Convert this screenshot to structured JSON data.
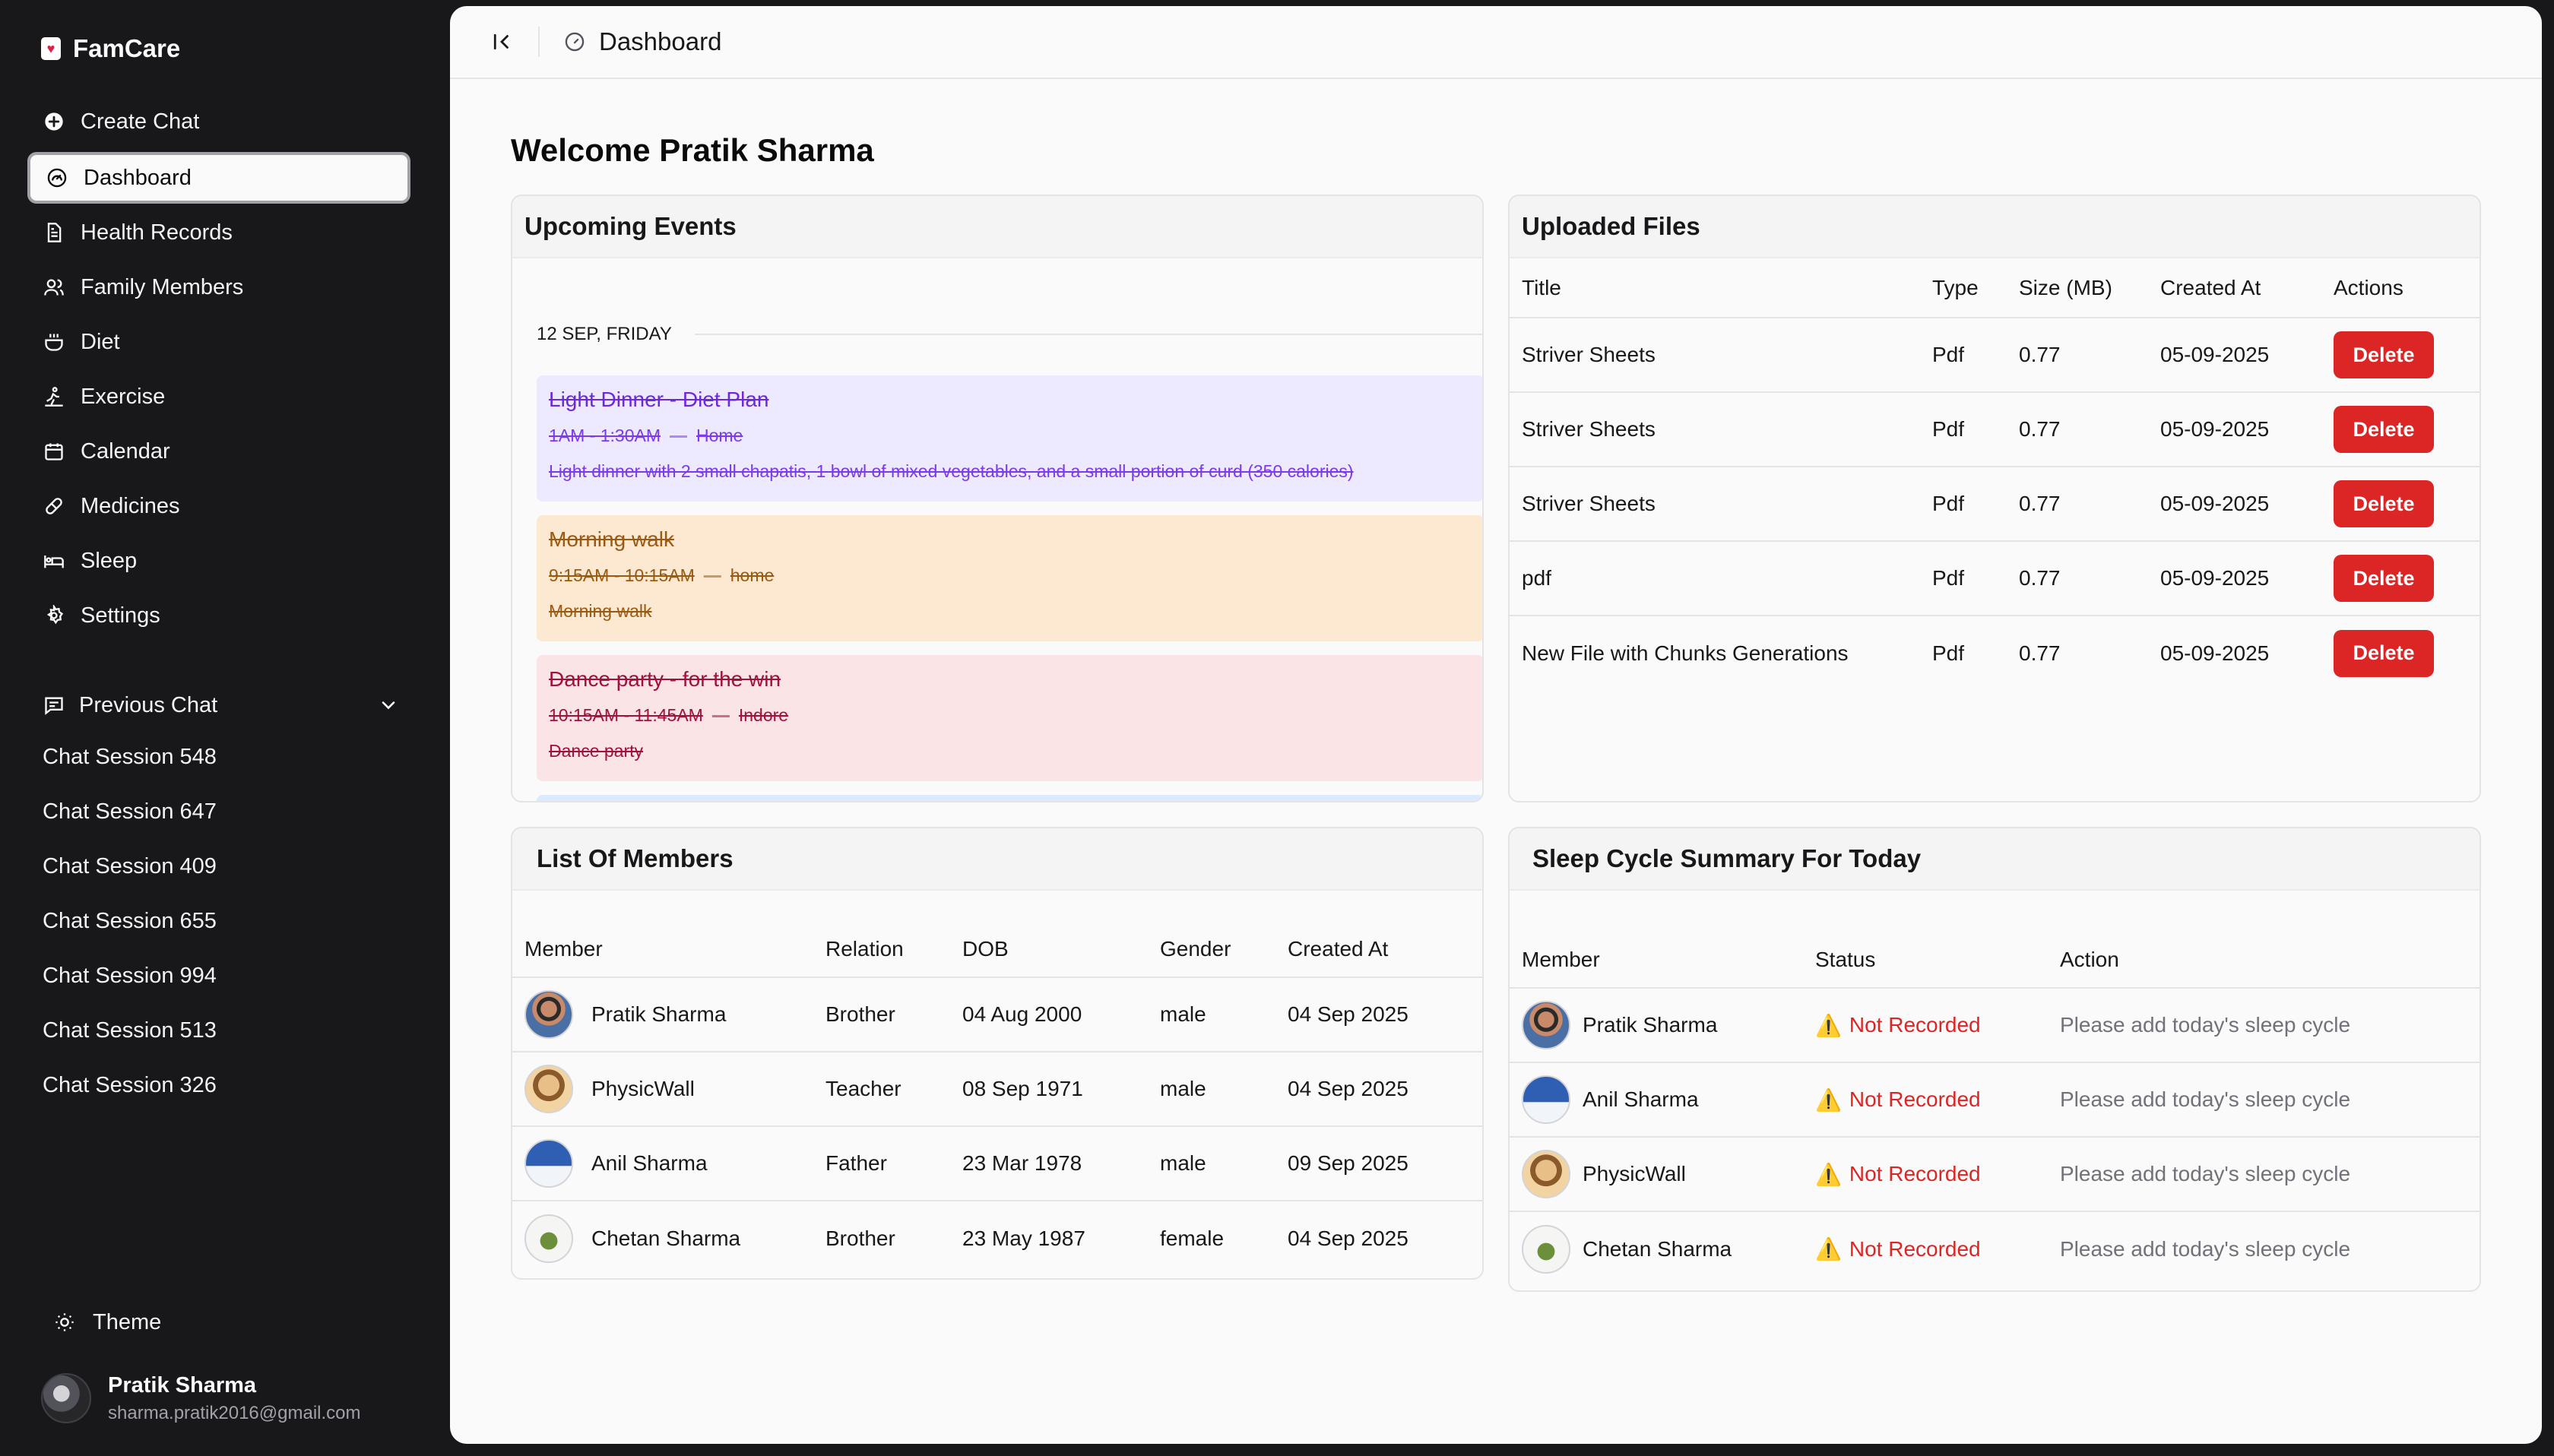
{
  "app": {
    "name": "FamCare",
    "logo_icon": "heart-icon"
  },
  "nav": {
    "items": [
      {
        "label": "Create Chat",
        "icon": "plus-circle-icon"
      },
      {
        "label": "Dashboard",
        "icon": "gauge-icon",
        "active": true
      },
      {
        "label": "Health Records",
        "icon": "file-icon"
      },
      {
        "label": "Family Members",
        "icon": "users-icon"
      },
      {
        "label": "Diet",
        "icon": "cooking-pot-icon"
      },
      {
        "label": "Exercise",
        "icon": "exercise-icon"
      },
      {
        "label": "Calendar",
        "icon": "calendar-icon"
      },
      {
        "label": "Medicines",
        "icon": "pill-icon"
      },
      {
        "label": "Sleep",
        "icon": "bed-icon"
      },
      {
        "label": "Settings",
        "icon": "gear-icon"
      }
    ]
  },
  "previous_chat": {
    "label": "Previous Chat",
    "sessions": [
      "Chat Session 548",
      "Chat Session 647",
      "Chat Session 409",
      "Chat Session 655",
      "Chat Session 994",
      "Chat Session 513",
      "Chat Session 326"
    ]
  },
  "theme_label": "Theme",
  "user": {
    "name": "Pratik Sharma",
    "email": "sharma.pratik2016@gmail.com"
  },
  "header": {
    "breadcrumb": "Dashboard"
  },
  "welcome": "Welcome Pratik Sharma",
  "events": {
    "title": "Upcoming Events",
    "date": "12 SEP, FRIDAY",
    "items": [
      {
        "title": "Light Dinner - Diet Plan",
        "time": "1AM - 1:30AM",
        "place": "Home",
        "desc": "Light dinner with 2 small chapatis, 1 bowl of mixed vegetables, and a small portion of curd (350 calories)"
      },
      {
        "title": "Morning walk",
        "time": "9:15AM - 10:15AM",
        "place": "home",
        "desc": "Morning walk"
      },
      {
        "title": "Dance party - for the win",
        "time": "10:15AM - 11:45AM",
        "place": "Indore",
        "desc": "Dance party"
      }
    ],
    "separator": "—"
  },
  "files": {
    "title": "Uploaded Files",
    "columns": [
      "Title",
      "Type",
      "Size (MB)",
      "Created At",
      "Actions"
    ],
    "rows": [
      [
        "Striver Sheets",
        "Pdf",
        "0.77",
        "05-09-2025"
      ],
      [
        "Striver Sheets",
        "Pdf",
        "0.77",
        "05-09-2025"
      ],
      [
        "Striver Sheets",
        "Pdf",
        "0.77",
        "05-09-2025"
      ],
      [
        "pdf",
        "Pdf",
        "0.77",
        "05-09-2025"
      ],
      [
        "New File with Chunks Generations",
        "Pdf",
        "0.77",
        "05-09-2025"
      ]
    ],
    "delete_label": "Delete"
  },
  "members": {
    "title": "List Of Members",
    "columns": [
      "Member",
      "Relation",
      "DOB",
      "Gender",
      "Created At"
    ],
    "rows": [
      [
        "Pratik Sharma",
        "Brother",
        "04 Aug 2000",
        "male",
        "04 Sep 2025"
      ],
      [
        "PhysicWall",
        "Teacher",
        "08 Sep 1971",
        "male",
        "04 Sep 2025"
      ],
      [
        "Anil Sharma",
        "Father",
        "23 Mar 1978",
        "male",
        "09 Sep 2025"
      ],
      [
        "Chetan Sharma",
        "Brother",
        "23 May 1987",
        "female",
        "04 Sep 2025"
      ]
    ]
  },
  "sleep": {
    "title": "Sleep Cycle Summary For Today",
    "columns": [
      "Member",
      "Status",
      "Action"
    ],
    "rows": [
      [
        "Pratik Sharma",
        "Not Recorded",
        "Please add today's sleep cycle"
      ],
      [
        "Anil Sharma",
        "Not Recorded",
        "Please add today's sleep cycle"
      ],
      [
        "PhysicWall",
        "Not Recorded",
        "Please add today's sleep cycle"
      ],
      [
        "Chetan Sharma",
        "Not Recorded",
        "Please add today's sleep cycle"
      ]
    ],
    "warning_icon": "⚠️"
  },
  "colors": {
    "sidebar_bg": "#18181b",
    "danger": "#dc2626",
    "main_bg": "#fafafa"
  }
}
